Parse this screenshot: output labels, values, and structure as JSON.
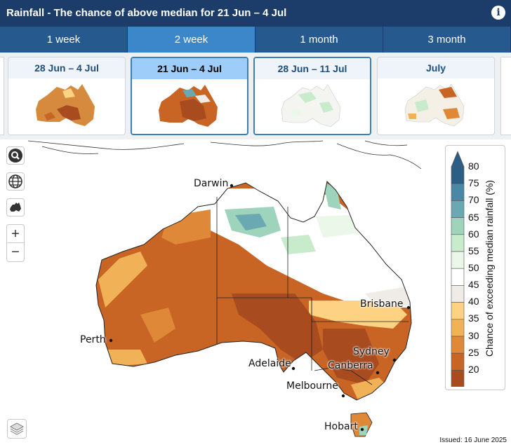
{
  "header": {
    "title": "Rainfall - The chance of above median for 21 Jun – 4 Jul",
    "info_icon": "info-icon"
  },
  "tabs": [
    {
      "label": "1 week",
      "active": false
    },
    {
      "label": "2 week",
      "active": true
    },
    {
      "label": "1 month",
      "active": false
    },
    {
      "label": "3 month",
      "active": false
    }
  ],
  "thumbnails": [
    {
      "label": "28 Jun – 4 Jul",
      "tone": "dry"
    },
    {
      "label": "21 Jun – 4 Jul",
      "tone": "dry",
      "active": true
    },
    {
      "label": "28 Jun – 11 Jul",
      "tone": "wet"
    },
    {
      "label": "July",
      "tone": "mixed"
    }
  ],
  "map_controls": {
    "search": "search-icon",
    "globe": "globe-icon",
    "australia": "australia-icon",
    "zoom_in": "+",
    "zoom_out": "−",
    "layers": "layers-icon"
  },
  "cities": {
    "darwin": "Darwin",
    "brisbane": "Brisbane",
    "perth": "Perth",
    "sydney": "Sydney",
    "adelaide": "Adelaide",
    "canberra": "Canberra",
    "melbourne": "Melbourne",
    "hobart": "Hobart"
  },
  "legend": {
    "title": "Chance of exceeding median rainfall (%)",
    "ticks": [
      "80",
      "75",
      "70",
      "65",
      "60",
      "55",
      "50",
      "45",
      "40",
      "35",
      "30",
      "25",
      "20"
    ],
    "colors": [
      "#2b5f86",
      "#4a89a5",
      "#6aa9b1",
      "#9ed3bc",
      "#c8eccb",
      "#eaf7e9",
      "#ffffff",
      "#efece8",
      "#fdd282",
      "#f1b257",
      "#de8838",
      "#c86424",
      "#a84b1e"
    ]
  },
  "issued": "Issued: 16 June 2025"
}
